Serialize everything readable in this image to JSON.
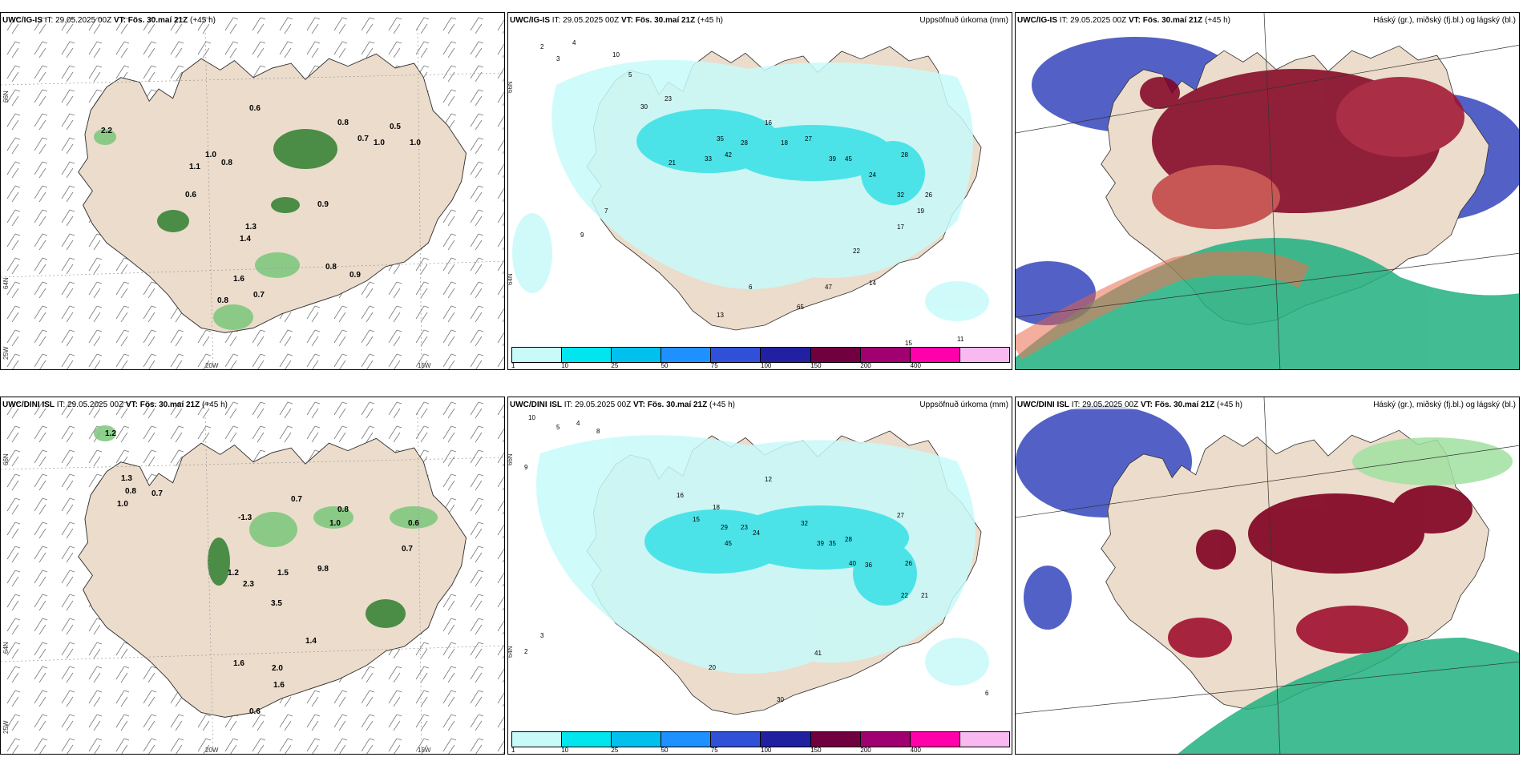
{
  "top_row": {
    "wind": {
      "model": "UWC/IG-IS",
      "it_label": "IT:",
      "it": "29.05.2025 00Z",
      "vt_label": "VT:",
      "vt": "Fös. 30.maí 21Z",
      "lead": "(+45 h)",
      "lat_labels": [
        "66N",
        "64N",
        "25W"
      ],
      "lon_labels": [
        "20W",
        "15W"
      ],
      "values": [
        "0.6",
        "0.8",
        "0.5",
        "1.0",
        "0.7",
        "1.0",
        "1.1",
        "1.0",
        "0.6",
        "0.8",
        "0.9",
        "1.3",
        "1.4",
        "0.8",
        "1.6",
        "0.8",
        "0.7",
        "0.9",
        "2.2"
      ]
    },
    "precip": {
      "model": "UWC/IG-IS",
      "it_label": "IT:",
      "it": "29.05.2025 00Z",
      "vt_label": "VT:",
      "vt": "Fös. 30.maí 21Z",
      "lead": "(+45 h)",
      "title_right": "Uppsöfnuð úrkoma (mm)",
      "lat_labels": [
        "66N",
        "64N"
      ],
      "values": [
        "2",
        "3",
        "4",
        "10",
        "5",
        "30",
        "23",
        "21",
        "33",
        "42",
        "28",
        "35",
        "16",
        "18",
        "27",
        "39",
        "45",
        "24",
        "28",
        "32",
        "26",
        "19",
        "17",
        "22",
        "14",
        "47",
        "65",
        "11",
        "15",
        "13",
        "9",
        "7",
        "6"
      ]
    },
    "cloud": {
      "model": "UWC/IG-IS",
      "it_label": "IT:",
      "it": "29.05.2025 00Z",
      "vt_label": "VT:",
      "vt": "Fös. 30.maí 21Z",
      "lead": "(+45 h)",
      "title_right": "Háský (gr.), miðský (fj.bl.) og lágský (bl.)"
    }
  },
  "bottom_row": {
    "wind": {
      "model": "UWC/DINI ISL",
      "it_label": "IT:",
      "it": "29.05.2025 00Z",
      "vt_label": "VT:",
      "vt": "Fös. 30.maí 21Z",
      "lead": "(+45 h)",
      "lat_labels": [
        "66N",
        "64N",
        "25W"
      ],
      "lon_labels": [
        "20W",
        "15W"
      ],
      "values": [
        "1.2",
        "1.3",
        "0.8",
        "0.7",
        "1.0",
        "0.7",
        "-1.3",
        "0.8",
        "1.0",
        "0.6",
        "0.7",
        "1.2",
        "2.3",
        "3.5",
        "9.8",
        "1.5",
        "1.6",
        "2.0",
        "1.6",
        "0.6",
        "1.4"
      ]
    },
    "precip": {
      "model": "UWC/DINI ISL",
      "it_label": "IT:",
      "it": "29.05.2025 00Z",
      "vt_label": "VT:",
      "vt": "Fös. 30.maí 21Z",
      "lead": "(+45 h)",
      "title_right": "Uppsöfnuð úrkoma (mm)",
      "lat_labels": [
        "66N",
        "64N"
      ],
      "values": [
        "10",
        "5",
        "4",
        "8",
        "9",
        "16",
        "12",
        "15",
        "18",
        "23",
        "29",
        "24",
        "32",
        "45",
        "39",
        "35",
        "28",
        "27",
        "40",
        "36",
        "26",
        "21",
        "22",
        "20",
        "30",
        "41",
        "6",
        "3",
        "2"
      ]
    },
    "cloud": {
      "model": "UWC/DINI ISL",
      "it_label": "IT:",
      "it": "29.05.2025 00Z",
      "vt_label": "VT:",
      "vt": "Fös. 30.maí 21Z",
      "lead": "(+45 h)",
      "title_right": "Háský (gr.), miðský (fj.bl.) og lágský (bl.)"
    }
  },
  "colorbar": {
    "labels": [
      "1",
      "10",
      "25",
      "50",
      "75",
      "100",
      "150",
      "200",
      "400"
    ],
    "colors": [
      "#c8fafa",
      "#00e5ee",
      "#00c0ee",
      "#1e90ff",
      "#3050d8",
      "#2020a0",
      "#700040",
      "#a00070",
      "#ff00aa",
      "#f8b8f0"
    ]
  },
  "colors": {
    "land": "#ecdccb",
    "precip_light": "#c8fafa",
    "precip_mid": "#30e5ee",
    "high_cloud": "#20b080",
    "mid_cloud": "#4050c0",
    "low_cloud": "#800020",
    "wind_green": "#80e080"
  }
}
